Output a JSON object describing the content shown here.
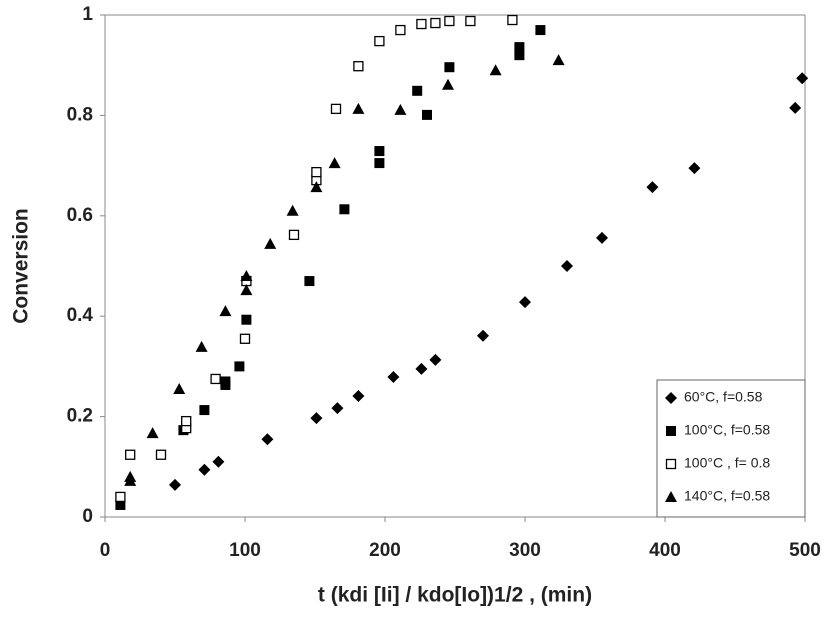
{
  "chart_data": {
    "type": "scatter",
    "x_label": "t (kdi [Ii] / kdo[Io])1/2 , (min)",
    "y_label": "Conversion",
    "xlim": [
      0,
      500
    ],
    "xticks": [
      0,
      100,
      200,
      300,
      400,
      500
    ],
    "ylim": [
      0,
      1
    ],
    "yticks": [
      0,
      0.2,
      0.4,
      0.6,
      0.8,
      1
    ],
    "grid": false,
    "legend_position": "lower-right",
    "series": [
      {
        "name": "60°C, f=0.58",
        "color": "#000000",
        "marker": "diamond",
        "x": [
          50,
          71,
          81,
          116,
          151,
          166,
          181,
          206,
          226,
          236,
          270,
          300,
          330,
          355,
          391,
          421,
          493,
          498
        ],
        "values": [
          0.064,
          0.094,
          0.11,
          0.155,
          0.197,
          0.217,
          0.241,
          0.279,
          0.295,
          0.313,
          0.361,
          0.428,
          0.5,
          0.556,
          0.657,
          0.695,
          0.815,
          0.874
        ]
      },
      {
        "name": "100°C, f=0.58",
        "color": "#000000",
        "marker": "square",
        "x": [
          11,
          56,
          71,
          86,
          86,
          96,
          101,
          146,
          171,
          196,
          196,
          223,
          230,
          246,
          296,
          296,
          311
        ],
        "values": [
          0.024,
          0.173,
          0.213,
          0.263,
          0.27,
          0.3,
          0.393,
          0.47,
          0.613,
          0.705,
          0.729,
          0.849,
          0.801,
          0.896,
          0.92,
          0.936,
          0.97
        ]
      },
      {
        "name": "100°C , f= 0.8",
        "color": "#000000",
        "marker": "open-square",
        "x": [
          11,
          18,
          40,
          58,
          58,
          79,
          100,
          101,
          135,
          151,
          151,
          165,
          181,
          196,
          211,
          226,
          236,
          246,
          261,
          291
        ],
        "values": [
          0.04,
          0.124,
          0.124,
          0.177,
          0.191,
          0.275,
          0.355,
          0.47,
          0.562,
          0.671,
          0.687,
          0.813,
          0.898,
          0.948,
          0.97,
          0.982,
          0.984,
          0.988,
          0.988,
          0.99
        ]
      },
      {
        "name": "140°C, f=0.58",
        "color": "#000000",
        "marker": "triangle",
        "x": [
          18,
          18,
          34,
          53,
          69,
          86,
          101,
          101,
          118,
          134,
          151,
          164,
          181,
          211,
          245,
          279,
          324
        ],
        "values": [
          0.072,
          0.08,
          0.167,
          0.255,
          0.339,
          0.41,
          0.452,
          0.48,
          0.544,
          0.61,
          0.657,
          0.705,
          0.813,
          0.811,
          0.861,
          0.89,
          0.91
        ]
      }
    ]
  }
}
